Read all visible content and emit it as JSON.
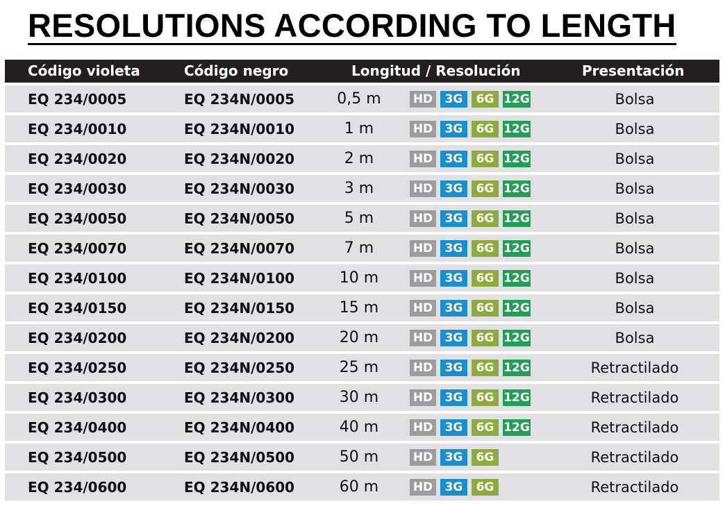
{
  "title": "RESOLUTIONS ACCORDING TO LENGTH",
  "headers": [
    "Código violeta",
    "Código negro",
    "Longitud / Resolución",
    "Presentación"
  ],
  "badge_labels": {
    "hd": "HD",
    "g3": "3G",
    "g6": "6G",
    "g12": "12G"
  },
  "colors": {
    "hd": "#9c9c9e",
    "g3": "#1a8fd0",
    "g6": "#8dab3c",
    "g12": "#1fa055",
    "header_bg": "#231f20",
    "row_bg": "#e1e1e3"
  },
  "rows": [
    {
      "violet": "EQ 234/0005",
      "black": "EQ 234N/0005",
      "length": "0,5 m",
      "res": [
        "HD",
        "3G",
        "6G",
        "12G"
      ],
      "presentation": "Bolsa"
    },
    {
      "violet": "EQ 234/0010",
      "black": "EQ 234N/0010",
      "length": "1 m",
      "res": [
        "HD",
        "3G",
        "6G",
        "12G"
      ],
      "presentation": "Bolsa"
    },
    {
      "violet": "EQ 234/0020",
      "black": "EQ 234N/0020",
      "length": "2 m",
      "res": [
        "HD",
        "3G",
        "6G",
        "12G"
      ],
      "presentation": "Bolsa"
    },
    {
      "violet": "EQ 234/0030",
      "black": "EQ 234N/0030",
      "length": "3 m",
      "res": [
        "HD",
        "3G",
        "6G",
        "12G"
      ],
      "presentation": "Bolsa"
    },
    {
      "violet": "EQ 234/0050",
      "black": "EQ 234N/0050",
      "length": "5 m",
      "res": [
        "HD",
        "3G",
        "6G",
        "12G"
      ],
      "presentation": "Bolsa"
    },
    {
      "violet": "EQ 234/0070",
      "black": "EQ 234N/0070",
      "length": "7 m",
      "res": [
        "HD",
        "3G",
        "6G",
        "12G"
      ],
      "presentation": "Bolsa"
    },
    {
      "violet": "EQ 234/0100",
      "black": "EQ 234N/0100",
      "length": "10 m",
      "res": [
        "HD",
        "3G",
        "6G",
        "12G"
      ],
      "presentation": "Bolsa"
    },
    {
      "violet": "EQ 234/0150",
      "black": "EQ 234N/0150",
      "length": "15 m",
      "res": [
        "HD",
        "3G",
        "6G",
        "12G"
      ],
      "presentation": "Bolsa"
    },
    {
      "violet": "EQ 234/0200",
      "black": "EQ 234N/0200",
      "length": "20 m",
      "res": [
        "HD",
        "3G",
        "6G",
        "12G"
      ],
      "presentation": "Bolsa"
    },
    {
      "violet": "EQ 234/0250",
      "black": "EQ 234N/0250",
      "length": "25 m",
      "res": [
        "HD",
        "3G",
        "6G",
        "12G"
      ],
      "presentation": "Retractilado"
    },
    {
      "violet": "EQ 234/0300",
      "black": "EQ 234N/0300",
      "length": "30 m",
      "res": [
        "HD",
        "3G",
        "6G",
        "12G"
      ],
      "presentation": "Retractilado"
    },
    {
      "violet": "EQ 234/0400",
      "black": "EQ 234N/0400",
      "length": "40 m",
      "res": [
        "HD",
        "3G",
        "6G",
        "12G"
      ],
      "presentation": "Retractilado"
    },
    {
      "violet": "EQ 234/0500",
      "black": "EQ 234N/0500",
      "length": "50 m",
      "res": [
        "HD",
        "3G",
        "6G"
      ],
      "presentation": "Retractilado"
    },
    {
      "violet": "EQ 234/0600",
      "black": "EQ 234N/0600",
      "length": "60 m",
      "res": [
        "HD",
        "3G",
        "6G"
      ],
      "presentation": "Retractilado"
    }
  ]
}
